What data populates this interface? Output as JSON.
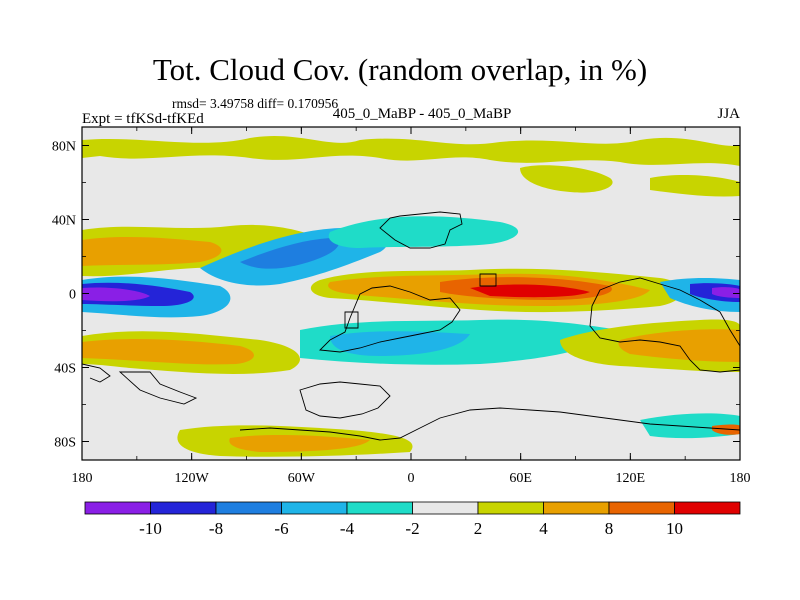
{
  "title": "Tot. Cloud Cov. (random overlap, in %)",
  "stats_line": "rmsd= 3.49758 diff= 0.170956",
  "experiment_label": "Expt = tfKSd-tfKEd",
  "center_label": "405_0_MaBP - 405_0_MaBP",
  "season_label": "JJA",
  "map": {
    "projection": "cylindrical-equidistant",
    "lon_range": [
      -180,
      180
    ],
    "lat_range": [
      -90,
      90
    ],
    "lat_ticks": [
      {
        "value": 80,
        "label": "80N"
      },
      {
        "value": 40,
        "label": "40N"
      },
      {
        "value": 0,
        "label": "0"
      },
      {
        "value": -40,
        "label": "40S"
      },
      {
        "value": -80,
        "label": "80S"
      }
    ],
    "lon_ticks": [
      {
        "value": -180,
        "label": "180"
      },
      {
        "value": -120,
        "label": "120W"
      },
      {
        "value": -60,
        "label": "60W"
      },
      {
        "value": 0,
        "label": "0"
      },
      {
        "value": 60,
        "label": "60E"
      },
      {
        "value": 120,
        "label": "120E"
      },
      {
        "value": 180,
        "label": "180"
      }
    ]
  },
  "colorbar": {
    "levels": [
      -10,
      -8,
      -6,
      -4,
      -2,
      2,
      4,
      8,
      10
    ],
    "labels": [
      "-10",
      "-8",
      "-6",
      "-4",
      "-2",
      "2",
      "4",
      "8",
      "10"
    ],
    "colors": [
      "#8a1fe6",
      "#2424d8",
      "#1e7ee0",
      "#1fb4e8",
      "#1fdcc8",
      "#e8e8e8",
      "#c8d400",
      "#e8a000",
      "#e86400",
      "#e00000"
    ]
  }
}
